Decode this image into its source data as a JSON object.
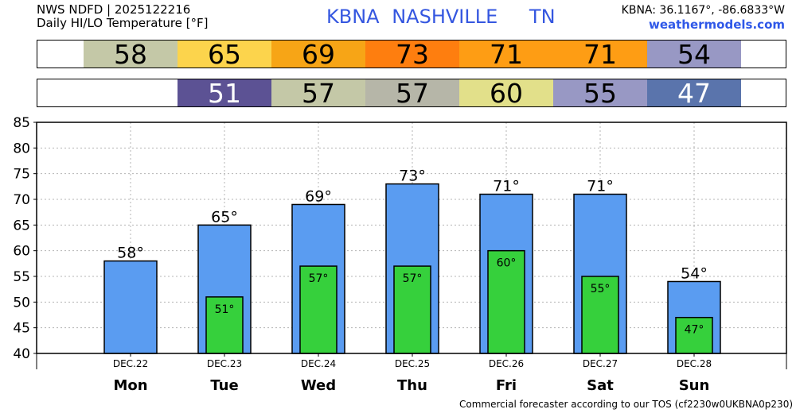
{
  "header": {
    "source_line": "NWS NDFD | 2025122216",
    "product_line": "Daily HI/LO Temperature [°F]",
    "station_code": "KBNA",
    "station_name": "NASHVILLE",
    "state": "TN",
    "coords": "KBNA: 36.1167°, -86.6833°W",
    "site": "weathermodels.com"
  },
  "colors": {
    "hi_bar": "#5a9cf1",
    "lo_bar": "#36d03c",
    "hi_cells": [
      "#c4c8a7",
      "#fcd44c",
      "#f7a516",
      "#fe7e0f",
      "#fe9d14",
      "#fe9d14",
      "#9898c4"
    ],
    "lo_cells": [
      null,
      "#5c5294",
      "#c4c8a7",
      "#b6b6a8",
      "#e2e08a",
      "#9898c4",
      "#5a74ac"
    ]
  },
  "chart_data": {
    "type": "bar",
    "days": [
      "Mon",
      "Tue",
      "Wed",
      "Thu",
      "Fri",
      "Sat",
      "Sun"
    ],
    "dates": [
      "DEC.22",
      "DEC.23",
      "DEC.24",
      "DEC.25",
      "DEC.26",
      "DEC.27",
      "DEC.28"
    ],
    "series": [
      {
        "values": [
          58,
          65,
          69,
          73,
          71,
          71,
          54
        ]
      },
      {
        "values": [
          null,
          51,
          57,
          57,
          60,
          55,
          47
        ]
      }
    ],
    "hi_labels": [
      "58°",
      "65°",
      "69°",
      "73°",
      "71°",
      "71°",
      "54°"
    ],
    "lo_labels": [
      "",
      "51°",
      "57°",
      "57°",
      "60°",
      "55°",
      "47°"
    ],
    "hi_strip": [
      "58",
      "65",
      "69",
      "73",
      "71",
      "71",
      "54"
    ],
    "lo_strip": [
      "",
      "51",
      "57",
      "57",
      "60",
      "55",
      "47"
    ],
    "yticks": [
      "40",
      "45",
      "50",
      "55",
      "60",
      "65",
      "70",
      "75",
      "80",
      "85"
    ],
    "ylim": [
      40,
      85
    ],
    "grid": true
  },
  "footer": "Commercial forecaster according to our TOS (cf2230w0UKBNA0p230)"
}
